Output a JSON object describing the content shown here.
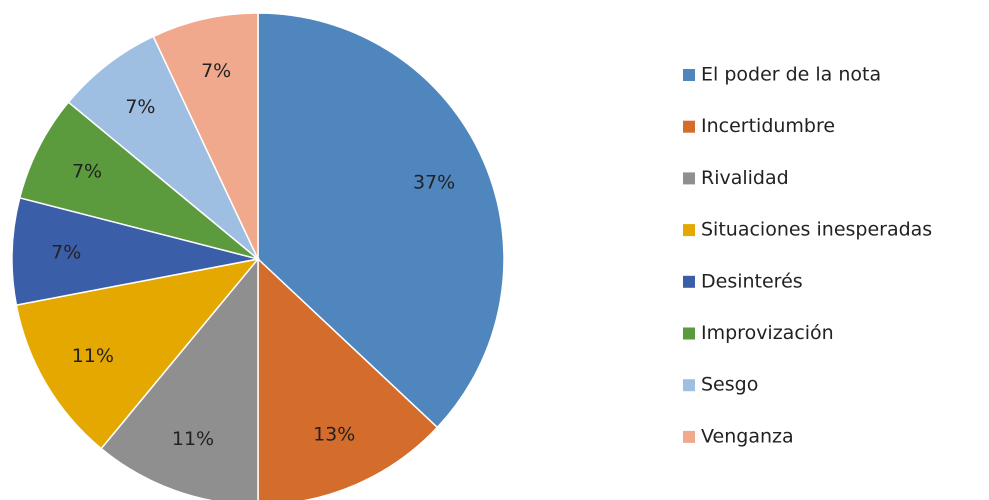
{
  "chart_data": {
    "type": "pie",
    "categories": [
      "El poder de la nota",
      "Incertidumbre",
      "Rivalidad",
      "Situaciones inesperadas",
      "Desinterés",
      "Improvización",
      "Sesgo",
      "Venganza"
    ],
    "values": [
      37,
      13,
      11,
      11,
      7,
      7,
      7,
      7
    ],
    "value_labels": [
      "37%",
      "13%",
      "11%",
      "11%",
      "7%",
      "7%",
      "7%",
      "7%"
    ],
    "colors": [
      "#4f86be",
      "#d46c2b",
      "#8f8f8f",
      "#e5a800",
      "#3b5ea9",
      "#5b9a3d",
      "#9fbfe2",
      "#f0a98c"
    ],
    "legend": "right"
  }
}
